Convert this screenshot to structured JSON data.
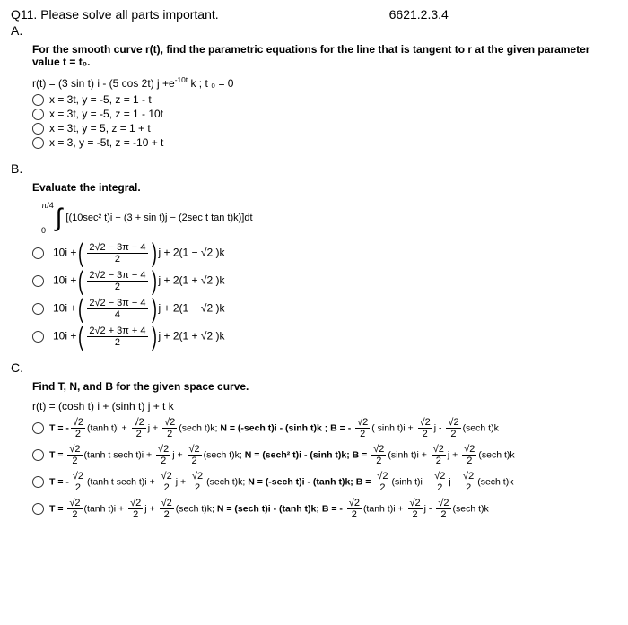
{
  "header": {
    "title": "Q11. Please solve all parts important.",
    "code": "6621.2.3.4"
  },
  "partA": {
    "label": "A.",
    "prompt": "For the smooth curve r(t), find the parametric equations for the line that is tangent to r at the given parameter value t = t₀.",
    "equation_prefix": "r(t) = (3 sin t) i - (5 cos 2t) j +e",
    "equation_exp": "-10t",
    "equation_suffix": " k ; t ₀ = 0",
    "options": [
      "x = 3t, y = -5, z = 1 - t",
      "x = 3t, y = -5, z = 1 - 10t",
      "x = 3t, y = 5, z = 1 + t",
      "x = 3, y = -5t, z = -10 + t"
    ]
  },
  "partB": {
    "label": "B.",
    "prompt": "Evaluate the integral.",
    "upper_limit": "π/4",
    "lower_limit": "0",
    "integrand": "[(10sec² t)i − (3 + sin t)j − (2sec t tan t)k)]dt",
    "options": [
      {
        "lead": "10i +",
        "num": "2√2 − 3π − 4",
        "den": "2",
        "tail": "j + 2(1 − √2 )k"
      },
      {
        "lead": "10i +",
        "num": "2√2 − 3π − 4",
        "den": "2",
        "tail": "j + 2(1 + √2 )k"
      },
      {
        "lead": "10i +",
        "num": "2√2 − 3π − 4",
        "den": "4",
        "tail": "j + 2(1 − √2 )k"
      },
      {
        "lead": "10i +",
        "num": "2√2 + 3π + 4",
        "den": "2",
        "tail": "j + 2(1 + √2 )k"
      }
    ]
  },
  "partC": {
    "label": "C.",
    "prompt": "Find T, N, and B for the given space curve.",
    "equation": "r(t) = (cosh t) i + (sinh t) j + t k",
    "frac_num": "√2",
    "frac_den": "2",
    "options": [
      {
        "T_pre": "T = -",
        "T_mid1": "(tanh t)i  + ",
        "T_mid2": "j  + ",
        "T_end": "(sech t)k; ",
        "N": "N = (-sech t)i  - (sinh t)k ; ",
        "B_pre": "B = - ",
        "B_mid1": "( sinh t)i + ",
        "B_mid2": "j - ",
        "B_end": "(sech t)k"
      },
      {
        "T_pre": "T = ",
        "T_mid1": "(tanh t sech t)i  + ",
        "T_mid2": "j  + ",
        "T_end": "(sech t)k; ",
        "N": "N = (sech² t)i  - (sinh t)k;  ",
        "B_pre": "B = ",
        "B_mid1": "(sinh t)i + ",
        "B_mid2": "j + ",
        "B_end": "(sech t)k"
      },
      {
        "T_pre": "T = -",
        "T_mid1": "(tanh t sech t)i  + ",
        "T_mid2": "j  + ",
        "T_end": "(sech t)k; ",
        "N": "N = (-sech t)i  - (tanh t)k;  ",
        "B_pre": "B = ",
        "B_mid1": "(sinh t)i - ",
        "B_mid2": "j - ",
        "B_end": "(sech t)k"
      },
      {
        "T_pre": "T = ",
        "T_mid1": "(tanh t)i  + ",
        "T_mid2": "j  + ",
        "T_end": "(sech t)k; ",
        "N": "N = (sech t)i  - (tanh t)k;  ",
        "B_pre": "B = - ",
        "B_mid1": "(tanh t)i + ",
        "B_mid2": "j - ",
        "B_end": "(sech t)k"
      }
    ]
  }
}
